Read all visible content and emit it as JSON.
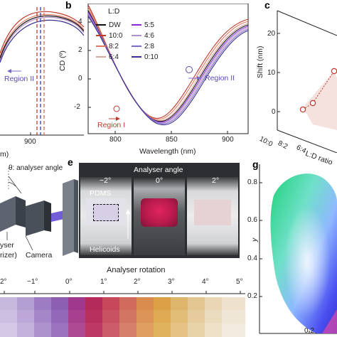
{
  "panels": {
    "b": "b",
    "c": "c",
    "e": "e",
    "g": "g"
  },
  "panel_a_partial": {
    "xtick": "900",
    "xlabel_fragment": "m)",
    "region_label": "Region II"
  },
  "panel_b": {
    "legend_title": "L:D",
    "legend": [
      {
        "label": "DW",
        "color": "#111111"
      },
      {
        "label": "5:5",
        "color": "#8a2be2"
      },
      {
        "label": "10:0",
        "color": "#c0392b"
      },
      {
        "label": "4:6",
        "color": "#b590c9"
      },
      {
        "label": "8:2",
        "color": "#e07a5f"
      },
      {
        "label": "2:8",
        "color": "#7a68c7"
      },
      {
        "label": "6:4",
        "color": "#d9a79c"
      },
      {
        "label": "0:10",
        "color": "#3a2f8f"
      }
    ],
    "region1": "Region I",
    "region2": "Region II",
    "ylabel": "CD (º)",
    "xlabel": "Wavelength (nm)",
    "yticks": [
      "4",
      "2",
      "0",
      "-2"
    ],
    "xticks": [
      "800",
      "850",
      "900"
    ]
  },
  "panel_c": {
    "ylabel": "Shift (nm)",
    "yticks": [
      "20",
      "10",
      "0"
    ],
    "xticks": [
      "10:0",
      "8:2",
      "6:4"
    ],
    "xlabel": "L:D ratio"
  },
  "panel_d_partial": {
    "angle_label": "θ: analyser angle",
    "label_analyser": "yser",
    "label_polarizer": "rizer)",
    "label_camera": "Camera"
  },
  "panel_e": {
    "title": "Analyser angle",
    "angles": [
      "−2°",
      "0°",
      "2°"
    ],
    "pdms": "PDMS",
    "helicoids": "Helicoids"
  },
  "panel_f_partial": {
    "title": "Analyser rotation",
    "ticks": [
      "2°",
      "−1°",
      "0°",
      "1°",
      "2°",
      "3°",
      "4°",
      "5°"
    ]
  },
  "panel_g": {
    "ylabel": "y",
    "yticks": [
      "0.8",
      "0.6",
      "0.4",
      "0.2"
    ],
    "xticks": [
      "0.2"
    ]
  },
  "colors": {
    "purple_dark": "#5a2a8a",
    "crimson": "#b0204a",
    "gold": "#d9a441"
  }
}
